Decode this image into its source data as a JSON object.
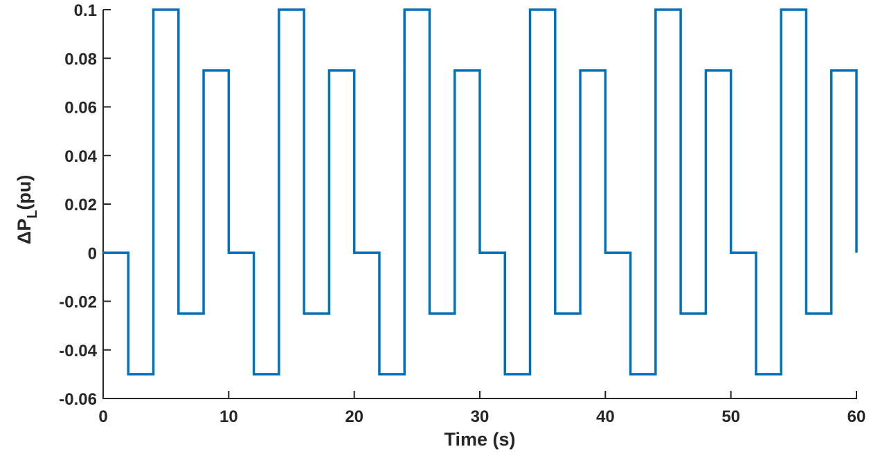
{
  "chart_data": {
    "type": "line",
    "title": "",
    "xlabel": "Time (s)",
    "ylabel_main": "ΔP",
    "ylabel_sub": "L",
    "ylabel_tail": "(pu)",
    "xlim": [
      0,
      60
    ],
    "ylim": [
      -0.06,
      0.1
    ],
    "xticks": [
      0,
      10,
      20,
      30,
      40,
      50,
      60
    ],
    "xtick_labels": [
      "0",
      "10",
      "20",
      "30",
      "40",
      "50",
      "60"
    ],
    "yticks": [
      -0.06,
      -0.04,
      -0.02,
      0,
      0.02,
      0.04,
      0.06,
      0.08,
      0.1
    ],
    "ytick_labels": [
      "-0.06",
      "-0.04",
      "-0.02",
      "0",
      "0.02",
      "0.04",
      "0.06",
      "0.08",
      "0.1"
    ],
    "grid": false,
    "legend": "none",
    "series": [
      {
        "color": "#0072BD",
        "step": "post",
        "x": [
          0,
          2,
          4,
          6,
          8,
          10,
          12,
          14,
          16,
          18,
          20,
          22,
          24,
          26,
          28,
          30,
          32,
          34,
          36,
          38,
          40,
          42,
          44,
          46,
          48,
          50,
          52,
          54,
          56,
          58,
          60
        ],
        "y": [
          0,
          -0.05,
          0.1,
          -0.025,
          0.075,
          0,
          -0.05,
          0.1,
          -0.025,
          0.075,
          0,
          -0.05,
          0.1,
          -0.025,
          0.075,
          0,
          -0.05,
          0.1,
          -0.025,
          0.075,
          0,
          -0.05,
          0.1,
          -0.025,
          0.075,
          0,
          -0.05,
          0.1,
          -0.025,
          0.075,
          0
        ]
      }
    ]
  }
}
